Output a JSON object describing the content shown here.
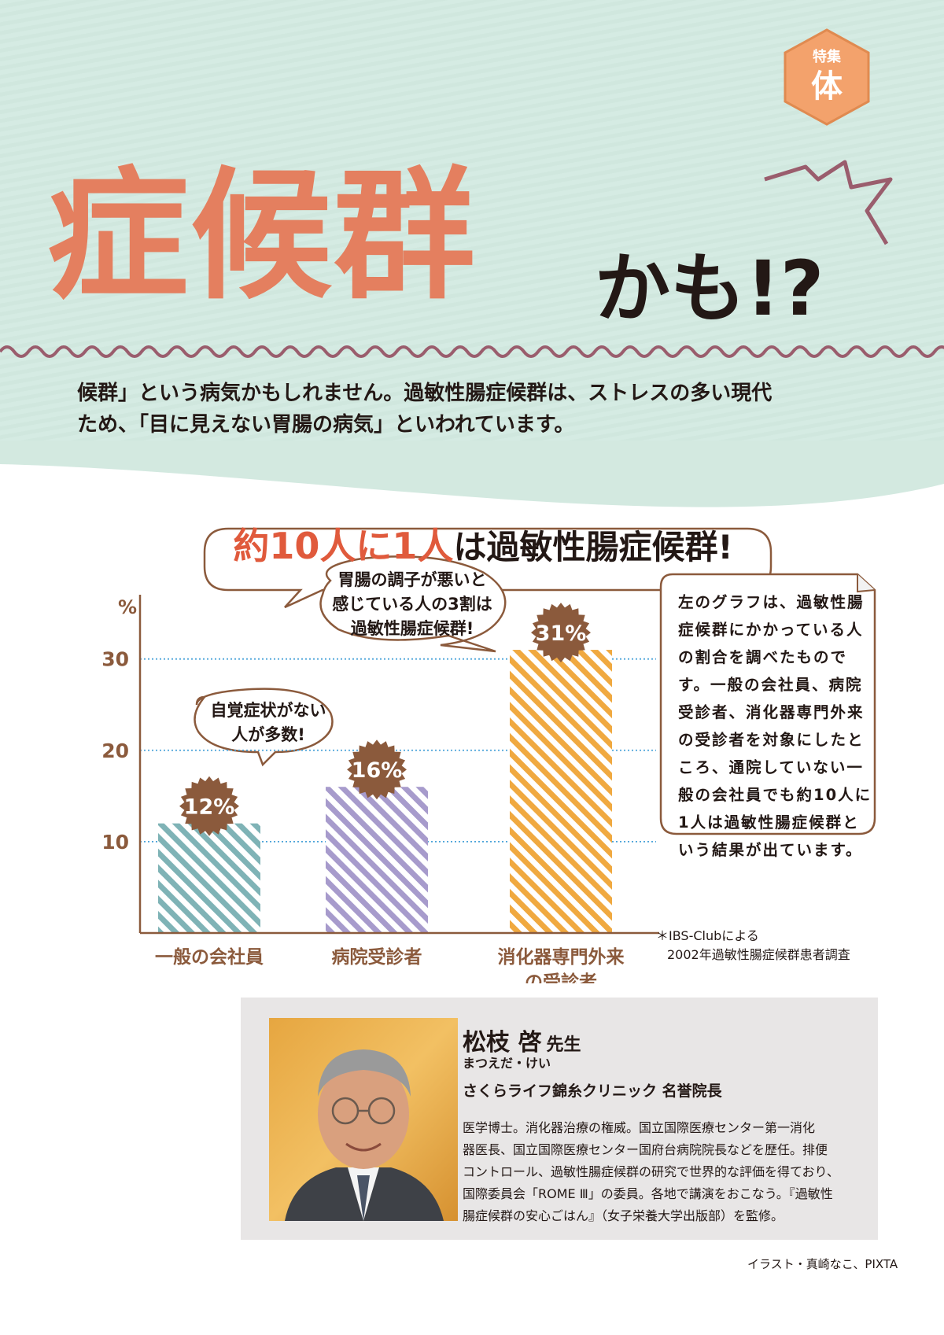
{
  "badge": {
    "label_small": "特集",
    "label_big": "体"
  },
  "title": {
    "main": "症候群",
    "sub": "かも!?"
  },
  "intro": [
    "候群」という病気かもしれません。過敏性腸症候群は、ストレスの多い現代",
    "ため、「目に見えない胃腸の病気」といわれています。"
  ],
  "headline": {
    "highlight": "約10人に1人",
    "rest": "は過敏性腸症候群!"
  },
  "chart_data": {
    "type": "bar",
    "categories": [
      "一般の会社員",
      "病院受診者",
      "消化器専門外来の受診者"
    ],
    "category_lines": [
      [
        "一般の会社員"
      ],
      [
        "病院受診者"
      ],
      [
        "消化器専門外来",
        "の受診者"
      ]
    ],
    "values": [
      12,
      16,
      31
    ],
    "value_labels": [
      "12%",
      "16%",
      "31%"
    ],
    "ylabel": "%",
    "yticks": [
      10,
      20,
      30
    ],
    "ylim": [
      0,
      36
    ],
    "grid": true,
    "colors": [
      "#7fb3b6",
      "#a79bcc",
      "#f0a940"
    ],
    "badge_color": "#8b5a3c"
  },
  "callouts": [
    {
      "lines": [
        "自覚症状がない",
        "人が多数!"
      ]
    },
    {
      "lines": [
        "胃腸の調子が悪いと",
        "感じている人の3割は",
        "過敏性腸症候群!"
      ]
    }
  ],
  "note": {
    "lines": [
      "左のグラフは、過敏性腸",
      "症候群にかかっている人",
      "の割合を調べたもので",
      "す。一般の会社員、病院",
      "受診者、消化器専門外来",
      "の受診者を対象にしたと",
      "ころ、通院していない一",
      "般の会社員でも約10人に",
      "1人は過敏性腸症候群と",
      "いう結果が出ています。"
    ]
  },
  "source": {
    "line1": "＊IBS-Clubによる",
    "line2": "2002年過敏性腸症候群患者調査"
  },
  "doctor": {
    "name": "松枝 啓",
    "suffix": "先生",
    "reading": "まつえだ・けい",
    "title": "さくらライフ錦糸クリニック 名誉院長",
    "bio": [
      "医学博士。消化器治療の権威。国立国際医療センター第一消化",
      "器医長、国立国際医療センター国府台病院院長などを歴任。排便",
      "コントロール、過敏性腸症候群の研究で世界的な評価を得ており、",
      "国際委員会「ROME Ⅲ」の委員。各地で講演をおこなう。『過敏性",
      "腸症候群の安心ごはん』（女子栄養大学出版部）を監修。"
    ]
  },
  "credit": "イラスト・真崎なこ、PIXTA",
  "colors": {
    "title": "#e47f5f",
    "accent": "#8b5a3c",
    "wave": "#9a5d6d",
    "axis": "#8b5a3c"
  }
}
